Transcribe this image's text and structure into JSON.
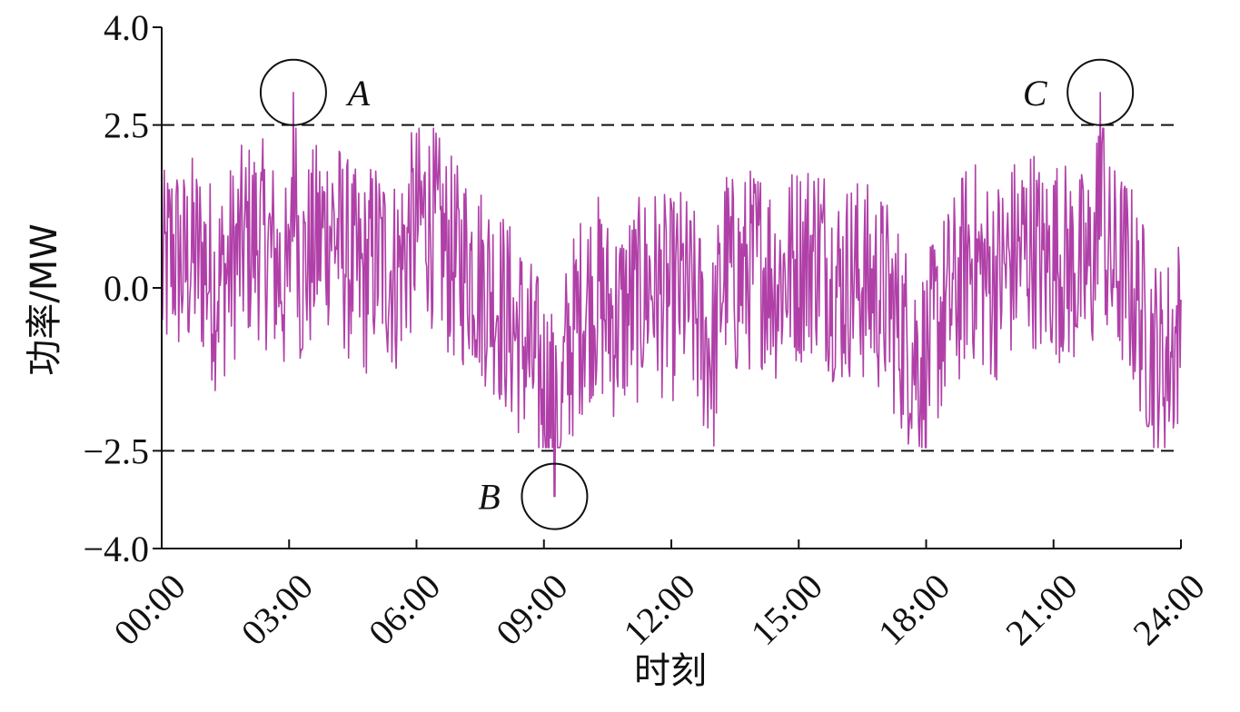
{
  "chart_data": {
    "type": "line",
    "xlabel": "时刻",
    "ylabel": "功率/MW",
    "xlim": [
      0,
      24
    ],
    "ylim": [
      -4.0,
      4.0
    ],
    "x_ticks": [
      {
        "value": 0,
        "label": "00:00"
      },
      {
        "value": 3,
        "label": "03:00"
      },
      {
        "value": 6,
        "label": "06:00"
      },
      {
        "value": 9,
        "label": "09:00"
      },
      {
        "value": 12,
        "label": "12:00"
      },
      {
        "value": 15,
        "label": "15:00"
      },
      {
        "value": 18,
        "label": "18:00"
      },
      {
        "value": 21,
        "label": "21:00"
      },
      {
        "value": 24,
        "label": "24:00"
      }
    ],
    "y_ticks": [
      {
        "value": 4.0,
        "label": "4.0"
      },
      {
        "value": 2.5,
        "label": "2.5"
      },
      {
        "value": 0.0,
        "label": "0.0"
      },
      {
        "value": -2.5,
        "label": "−2.5"
      },
      {
        "value": -4.0,
        "label": "−4.0"
      }
    ],
    "reference_lines": [
      {
        "y": 2.5,
        "style": "dashed",
        "color": "#111111"
      },
      {
        "y": -2.5,
        "style": "dashed",
        "color": "#111111"
      }
    ],
    "series": [
      {
        "color": "#b040a8",
        "x": [
          0.0,
          0.25,
          0.5,
          0.75,
          1.0,
          1.25,
          1.5,
          1.75,
          2.0,
          2.25,
          2.5,
          2.75,
          3.0,
          3.1,
          3.25,
          3.5,
          3.75,
          4.0,
          4.25,
          4.5,
          4.75,
          5.0,
          5.25,
          5.5,
          5.75,
          6.0,
          6.25,
          6.5,
          6.75,
          7.0,
          7.25,
          7.5,
          7.75,
          8.0,
          8.25,
          8.5,
          8.75,
          9.0,
          9.2,
          9.25,
          9.5,
          9.75,
          10.0,
          10.25,
          10.5,
          10.75,
          11.0,
          11.25,
          11.5,
          11.75,
          12.0,
          12.25,
          12.5,
          12.75,
          13.0,
          13.25,
          13.5,
          13.75,
          14.0,
          14.25,
          14.5,
          14.75,
          15.0,
          15.25,
          15.5,
          15.75,
          16.0,
          16.25,
          16.5,
          16.75,
          17.0,
          17.25,
          17.5,
          17.75,
          18.0,
          18.25,
          18.5,
          18.75,
          19.0,
          19.25,
          19.5,
          19.75,
          20.0,
          20.25,
          20.5,
          20.75,
          21.0,
          21.25,
          21.5,
          21.75,
          22.0,
          22.1,
          22.25,
          22.5,
          22.75,
          23.0,
          23.25,
          23.5,
          23.75,
          24.0
        ],
        "y": [
          0.1,
          0.6,
          0.3,
          0.5,
          0.4,
          0.0,
          0.2,
          0.5,
          0.7,
          0.8,
          0.6,
          0.3,
          -0.1,
          3.0,
          0.2,
          0.5,
          0.8,
          1.0,
          0.6,
          0.3,
          0.1,
          0.5,
          0.4,
          0.2,
          0.6,
          1.0,
          1.1,
          0.8,
          0.5,
          0.3,
          0.4,
          0.1,
          0.0,
          -0.3,
          -0.6,
          -0.8,
          -1.2,
          -1.5,
          -1.7,
          -3.2,
          -1.2,
          -0.6,
          -0.2,
          -0.1,
          -0.4,
          -0.5,
          -0.3,
          -0.2,
          0.1,
          -0.1,
          -0.2,
          0.0,
          -0.3,
          -0.7,
          -1.0,
          0.4,
          0.1,
          0.2,
          0.4,
          0.3,
          0.1,
          0.3,
          0.4,
          0.5,
          0.6,
          0.2,
          0.0,
          0.2,
          0.1,
          0.0,
          -0.1,
          -0.4,
          -0.8,
          -1.0,
          -1.2,
          -0.6,
          -0.3,
          0.0,
          0.5,
          0.3,
          0.1,
          0.2,
          0.4,
          0.6,
          0.7,
          0.3,
          0.5,
          0.4,
          0.3,
          0.2,
          0.5,
          3.0,
          0.4,
          0.3,
          0.2,
          -0.3,
          -0.8,
          -1.2,
          -1.0,
          -0.6
        ]
      }
    ],
    "annotations": [
      {
        "label": "A",
        "x": 3.1,
        "y": 3.0,
        "label_side": "right"
      },
      {
        "label": "B",
        "x": 9.25,
        "y": -3.2,
        "label_side": "left"
      },
      {
        "label": "C",
        "x": 22.1,
        "y": 3.0,
        "label_side": "left"
      }
    ],
    "grid": false,
    "legend": "none"
  },
  "colors": {
    "series_line": "#b040a8",
    "axis": "#111111"
  }
}
